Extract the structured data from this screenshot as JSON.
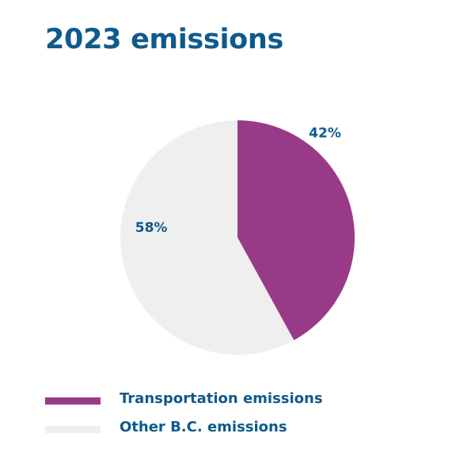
{
  "chart_data": {
    "type": "pie",
    "title": "2023 emissions",
    "series": [
      {
        "name": "Transportation emissions",
        "value": 42,
        "label": "42%",
        "color": "#983a88"
      },
      {
        "name": "Other B.C. emissions",
        "value": 58,
        "label": "58%",
        "color": "#efefef"
      }
    ],
    "legend_position": "bottom-left",
    "text_color": "#0f5a8c"
  }
}
